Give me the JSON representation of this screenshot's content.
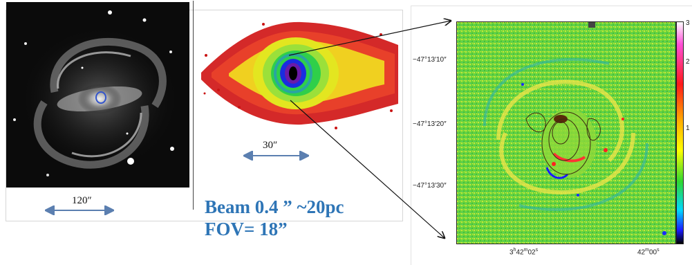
{
  "left_panel": {
    "optical_scale_label": "120″",
    "bar_scale_label": "30″",
    "beam_line1": "Beam 0.4 ” ~20pc",
    "beam_line2": "FOV= 18”"
  },
  "velocity_map": {
    "y_ticks": [
      "−47°13′10″",
      "−47°13′20″",
      "−47°13′30″"
    ],
    "x_ticks": [
      "3h42m02s",
      "42m00s"
    ],
    "colorbar_ticks": [
      "3",
      "2",
      "1"
    ],
    "colorbar_colors": [
      "#ffffff",
      "#ff4fd8",
      "#ff1a1a",
      "#ffb000",
      "#ffff00",
      "#2fd82f",
      "#00d8ff",
      "#1a1aff",
      "#000000"
    ]
  },
  "colors": {
    "beam_text": "#2e75b6",
    "scale_arrow": "#5b7fb0",
    "ellipse_marker": "#3355cc"
  }
}
